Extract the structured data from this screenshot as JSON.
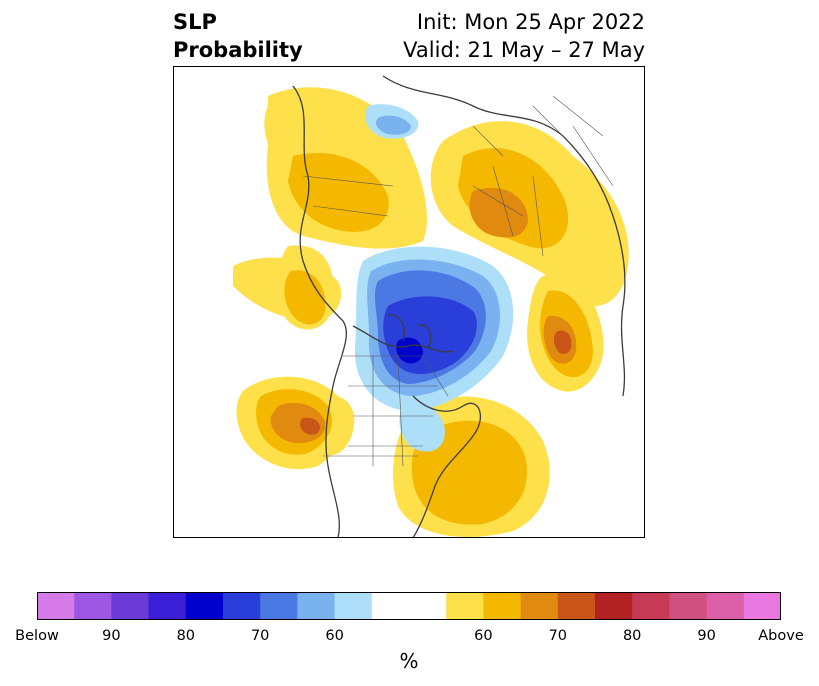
{
  "title": {
    "line1": "SLP",
    "line2": "Probability"
  },
  "init": "Init: Mon 25 Apr 2022",
  "valid": "Valid: 21 May – 27 May",
  "colorbar": {
    "unit": "%",
    "colors": [
      "#d67ae8",
      "#9e57e3",
      "#6a3ad6",
      "#3a1fd6",
      "#0000cd",
      "#2a3fd9",
      "#4c78e3",
      "#7ab2f0",
      "#aedff8",
      "#ffffff",
      "#ffffff",
      "#fee04a",
      "#f5b800",
      "#e08a10",
      "#c95518",
      "#b22222",
      "#c73a55",
      "#d05080",
      "#db60a8",
      "#e878e0"
    ],
    "ticks": [
      {
        "label": "Below",
        "i": 0
      },
      {
        "label": "90",
        "i": 2
      },
      {
        "label": "80",
        "i": 4
      },
      {
        "label": "70",
        "i": 6
      },
      {
        "label": "60",
        "i": 8
      },
      {
        "label": "60",
        "i": 12
      },
      {
        "label": "70",
        "i": 14
      },
      {
        "label": "80",
        "i": 16
      },
      {
        "label": "90",
        "i": 18
      },
      {
        "label": "Above",
        "i": 20
      }
    ]
  },
  "map": {
    "categories": {
      "above_50_60": "#fee04a",
      "above_60_65": "#f5b800",
      "above_65_70": "#e08a10",
      "above_70_75": "#c95518",
      "below_50_60": "#aedff8",
      "below_60_65": "#7ab2f0",
      "below_65_70": "#4c78e3",
      "below_70_75": "#2a3fd9",
      "below_75_80": "#0000cd"
    }
  }
}
